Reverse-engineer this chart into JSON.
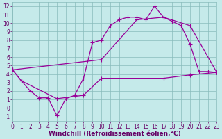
{
  "xlabel": "Windchill (Refroidissement éolien,°C)",
  "xlim": [
    0,
    23
  ],
  "ylim": [
    -1.5,
    12.5
  ],
  "xticks": [
    0,
    1,
    2,
    3,
    4,
    5,
    6,
    7,
    8,
    9,
    10,
    11,
    12,
    13,
    14,
    15,
    16,
    17,
    18,
    19,
    20,
    21,
    22,
    23
  ],
  "yticks": [
    -1,
    0,
    1,
    2,
    3,
    4,
    5,
    6,
    7,
    8,
    9,
    10,
    11,
    12
  ],
  "background_color": "#c5eaea",
  "grid_color": "#88bbbb",
  "line_color": "#990099",
  "line1_x": [
    0,
    1,
    2,
    3,
    4,
    5,
    6,
    7,
    8,
    9,
    10,
    11,
    12,
    13,
    14,
    15,
    16,
    17,
    18,
    19,
    20,
    21,
    22,
    23
  ],
  "line1_y": [
    4.5,
    3.2,
    2.0,
    1.2,
    1.2,
    -0.9,
    1.1,
    1.5,
    3.5,
    7.7,
    8.0,
    9.7,
    10.4,
    10.7,
    10.7,
    10.4,
    12.0,
    10.7,
    10.2,
    9.7,
    7.5,
    4.3,
    4.3,
    4.2
  ],
  "line2_x": [
    0,
    10,
    14,
    17,
    20,
    23
  ],
  "line2_y": [
    4.5,
    5.7,
    10.4,
    10.7,
    9.7,
    4.2
  ],
  "line3_x": [
    0,
    1,
    5,
    8,
    10,
    17,
    20,
    23
  ],
  "line3_y": [
    4.5,
    3.2,
    1.1,
    1.5,
    3.5,
    3.5,
    3.9,
    4.2
  ],
  "marker": "+",
  "markersize": 4,
  "linewidth": 0.9,
  "font_color": "#660066",
  "tick_fontsize": 5.5,
  "label_fontsize": 6.5
}
